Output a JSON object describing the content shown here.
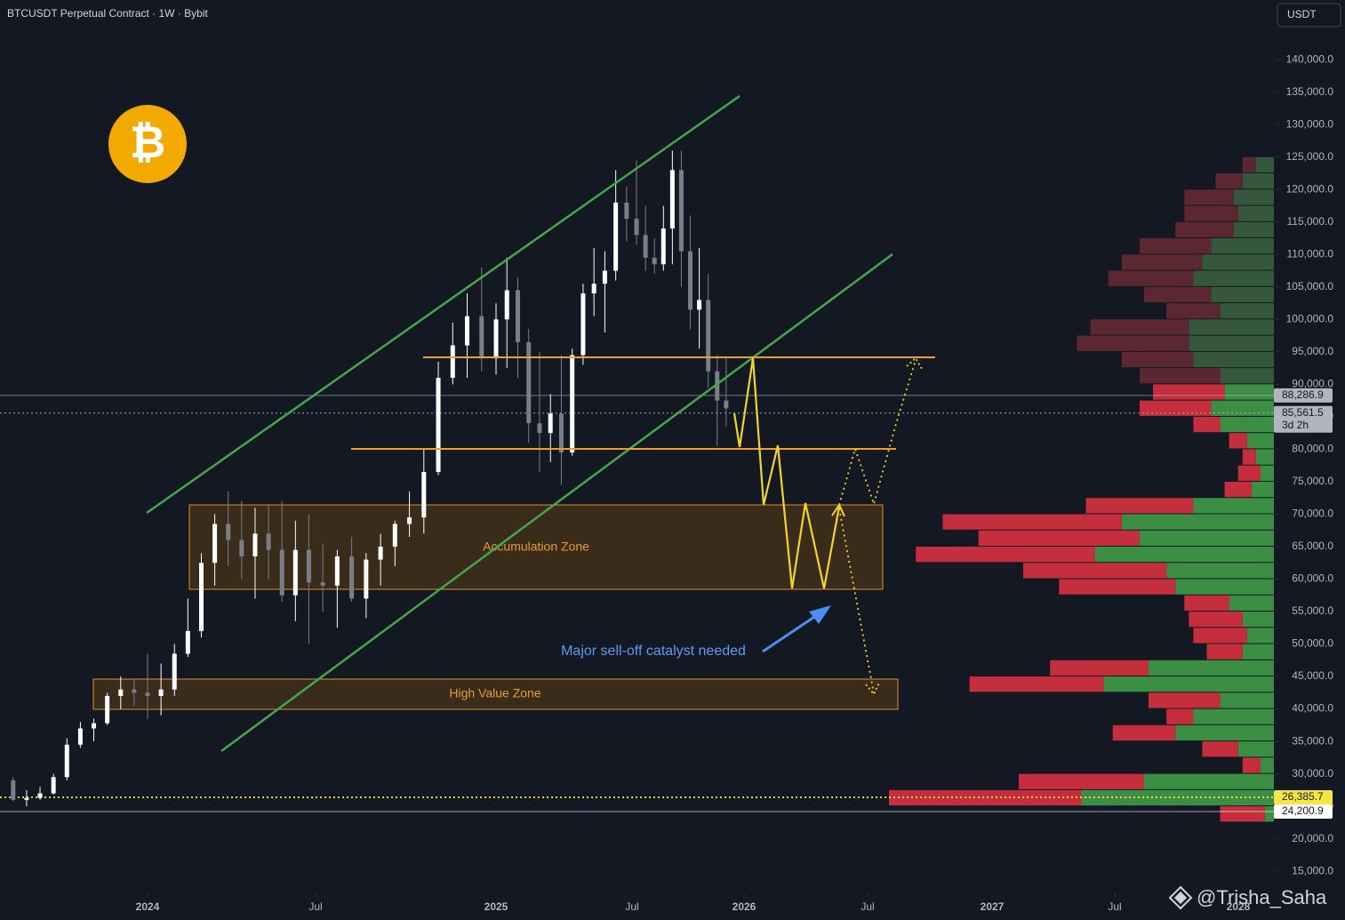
{
  "header": {
    "title": "BTCUSDT Perpetual Contract · 1W · Bybit",
    "currency_button": "USDT",
    "logo": "₿",
    "watermark": "@Trisha_Saha"
  },
  "chart_data": {
    "type": "candlestick",
    "up_color": "#ffffff",
    "down_color": "#7b7e88",
    "ylim": [
      11600,
      149200
    ],
    "yticks": [
      {
        "value": 15000,
        "label": "15,000.0"
      },
      {
        "value": 20000,
        "label": "20,000.0"
      },
      {
        "value": 25000,
        "label": "25,000.0"
      },
      {
        "value": 30000,
        "label": "30,000.0"
      },
      {
        "value": 35000,
        "label": "35,000.0"
      },
      {
        "value": 40000,
        "label": "40,000.0"
      },
      {
        "value": 45000,
        "label": "45,000.0"
      },
      {
        "value": 50000,
        "label": "50,000.0"
      },
      {
        "value": 55000,
        "label": "55,000.0"
      },
      {
        "value": 60000,
        "label": "60,000.0"
      },
      {
        "value": 65000,
        "label": "65,000.0"
      },
      {
        "value": 70000,
        "label": "70,000.0"
      },
      {
        "value": 75000,
        "label": "75,000.0"
      },
      {
        "value": 80000,
        "label": "80,000.0"
      },
      {
        "value": 85000,
        "label": "85,000.0"
      },
      {
        "value": 90000,
        "label": "90,000.0"
      },
      {
        "value": 95000,
        "label": "95,000.0"
      },
      {
        "value": 100000,
        "label": "100,000.0"
      },
      {
        "value": 105000,
        "label": "105,000.0"
      },
      {
        "value": 110000,
        "label": "110,000.0"
      },
      {
        "value": 115000,
        "label": "115,000.0"
      },
      {
        "value": 120000,
        "label": "120,000.0"
      },
      {
        "value": 125000,
        "label": "125,000.0"
      },
      {
        "value": 130000,
        "label": "130,000.0"
      },
      {
        "value": 135000,
        "label": "135,000.0"
      },
      {
        "value": 140000,
        "label": "140,000.0"
      }
    ],
    "xticks": [
      2024,
      {
        "value": 2024.5,
        "label": "Jul"
      },
      2025,
      {
        "value": 2025.5,
        "label": "Jul"
      },
      2026,
      {
        "value": 2026.5,
        "label": "Jul"
      },
      2027,
      {
        "value": 2027.5,
        "label": "Jul"
      },
      2028
    ],
    "candles": {
      "x": [
        2023.6,
        2023.64,
        2023.68,
        2023.72,
        2023.76,
        2023.8,
        2023.84,
        2023.88,
        2023.92,
        2023.96,
        2024.0,
        2024.04,
        2024.08,
        2024.12,
        2024.16,
        2024.2,
        2024.24,
        2024.28,
        2024.32,
        2024.36,
        2024.4,
        2024.44,
        2024.48,
        2024.52,
        2024.56,
        2024.6,
        2024.64,
        2024.68,
        2024.72,
        2024.76,
        2024.8,
        2024.84,
        2024.88,
        2024.92,
        2024.96,
        2025.0,
        2025.04,
        2025.08,
        2025.12,
        2025.16,
        2025.2,
        2025.24,
        2025.28,
        2025.32,
        2025.36,
        2025.4,
        2025.44,
        2025.48,
        2025.52,
        2025.56,
        2025.6,
        2025.64,
        2025.68,
        2025.72,
        2025.76,
        2025.8,
        2025.84,
        2025.88,
        2025.92
      ],
      "open": [
        29000,
        26000,
        26300,
        27000,
        29500,
        34500,
        37000,
        37800,
        42000,
        43000,
        42500,
        42000,
        43000,
        48500,
        52000,
        62500,
        68500,
        66000,
        63500,
        67000,
        64500,
        57500,
        64500,
        59500,
        59000,
        63500,
        57000,
        63000,
        65000,
        68500,
        69500,
        76500,
        91000,
        96000,
        100500,
        94000,
        100000,
        104500,
        96500,
        84000,
        82500,
        85500,
        79500,
        94500,
        104000,
        105500,
        107500,
        118000,
        115500,
        113000,
        109500,
        108500,
        114000,
        123000,
        110500,
        101500,
        103000,
        92000,
        87500
      ],
      "high": [
        29500,
        27500,
        28000,
        30000,
        35500,
        38000,
        38500,
        42500,
        45000,
        44500,
        48500,
        47000,
        50000,
        57000,
        64000,
        70000,
        73500,
        72000,
        71000,
        71500,
        72000,
        69000,
        70000,
        65500,
        64500,
        66500,
        64000,
        67000,
        69000,
        73500,
        80000,
        93500,
        99500,
        104000,
        108000,
        102500,
        109500,
        106500,
        98500,
        95000,
        88500,
        94500,
        95500,
        105500,
        111000,
        110500,
        123000,
        120500,
        124500,
        117500,
        112500,
        117500,
        126000,
        126000,
        116000,
        111000,
        107000,
        94500,
        94000
      ],
      "low": [
        25800,
        25000,
        26000,
        26800,
        29000,
        34000,
        35000,
        37500,
        40000,
        40500,
        38500,
        39000,
        42000,
        48000,
        51000,
        59000,
        62000,
        60000,
        57000,
        60000,
        56500,
        53500,
        50000,
        55000,
        52500,
        56500,
        54000,
        59000,
        62000,
        66500,
        67000,
        76000,
        90000,
        91000,
        92000,
        91500,
        92500,
        91000,
        81000,
        76500,
        78000,
        74500,
        79000,
        93000,
        100500,
        98000,
        106000,
        112000,
        111500,
        107500,
        107000,
        107500,
        108500,
        105000,
        98500,
        95500,
        89500,
        80500,
        83500
      ],
      "close": [
        26000,
        26300,
        27000,
        29500,
        34500,
        37000,
        37800,
        42000,
        43000,
        42500,
        42000,
        43000,
        48500,
        52000,
        62500,
        68500,
        66000,
        63500,
        67000,
        64500,
        57500,
        64500,
        59500,
        59000,
        63500,
        57000,
        63000,
        65000,
        68500,
        69500,
        76500,
        91000,
        96000,
        100500,
        94000,
        100000,
        104500,
        96500,
        84000,
        82500,
        85500,
        79500,
        94500,
        104000,
        105500,
        107500,
        118000,
        115500,
        113000,
        109500,
        108500,
        114000,
        123000,
        110500,
        101500,
        103000,
        92000,
        87500,
        86300
      ]
    },
    "price_lines": [
      {
        "value": 88286.9,
        "label": "88,286.9",
        "color": "#b2b5be",
        "style": "solid"
      },
      {
        "value": 85561.5,
        "label": "85,561.5",
        "sublabel": "3d 2h",
        "color": "#b2b5be",
        "style": "dotted"
      },
      {
        "value": 26385.7,
        "label": "26,385.7",
        "color": "#f5e642",
        "style": "dotted"
      },
      {
        "value": 24200.9,
        "label": "24,200.9",
        "color": "#ffffff",
        "style": "solid"
      }
    ],
    "volume_profile": {
      "bin_size": 2500,
      "vlim": [
        0,
        430
      ],
      "colors": {
        "up": "#3c8e45",
        "down": "#c52f3d",
        "up_dim": "#35583c",
        "down_dim": "#5b2832"
      },
      "levels": [
        122500,
        120000,
        117500,
        115000,
        112500,
        110000,
        107500,
        105000,
        102500,
        100000,
        97500,
        95000,
        92500,
        90000,
        87500,
        85000,
        82500,
        80000,
        77500,
        75000,
        72500,
        70000,
        67500,
        65000,
        62500,
        60000,
        57500,
        55000,
        52500,
        50000,
        47500,
        45000,
        42500,
        40000,
        37500,
        35000,
        32500,
        30000,
        27500,
        25000,
        22500
      ],
      "up": [
        20,
        35,
        45,
        40,
        45,
        70,
        80,
        90,
        70,
        60,
        95,
        95,
        90,
        60,
        55,
        70,
        60,
        30,
        20,
        15,
        25,
        90,
        170,
        150,
        200,
        120,
        110,
        50,
        35,
        30,
        35,
        140,
        190,
        60,
        90,
        110,
        40,
        15,
        145,
        215,
        10
      ],
      "down": [
        15,
        30,
        55,
        60,
        65,
        80,
        90,
        95,
        75,
        60,
        110,
        125,
        80,
        90,
        80,
        80,
        30,
        20,
        15,
        25,
        30,
        120,
        200,
        180,
        200,
        160,
        130,
        50,
        60,
        60,
        40,
        110,
        150,
        80,
        30,
        70,
        40,
        20,
        140,
        215,
        50
      ]
    },
    "annotations": {
      "accumulation_zone": "Accumulation Zone",
      "high_value_zone": "High Value Zone",
      "catalyst": "Major sell-off catalyst needed"
    }
  }
}
